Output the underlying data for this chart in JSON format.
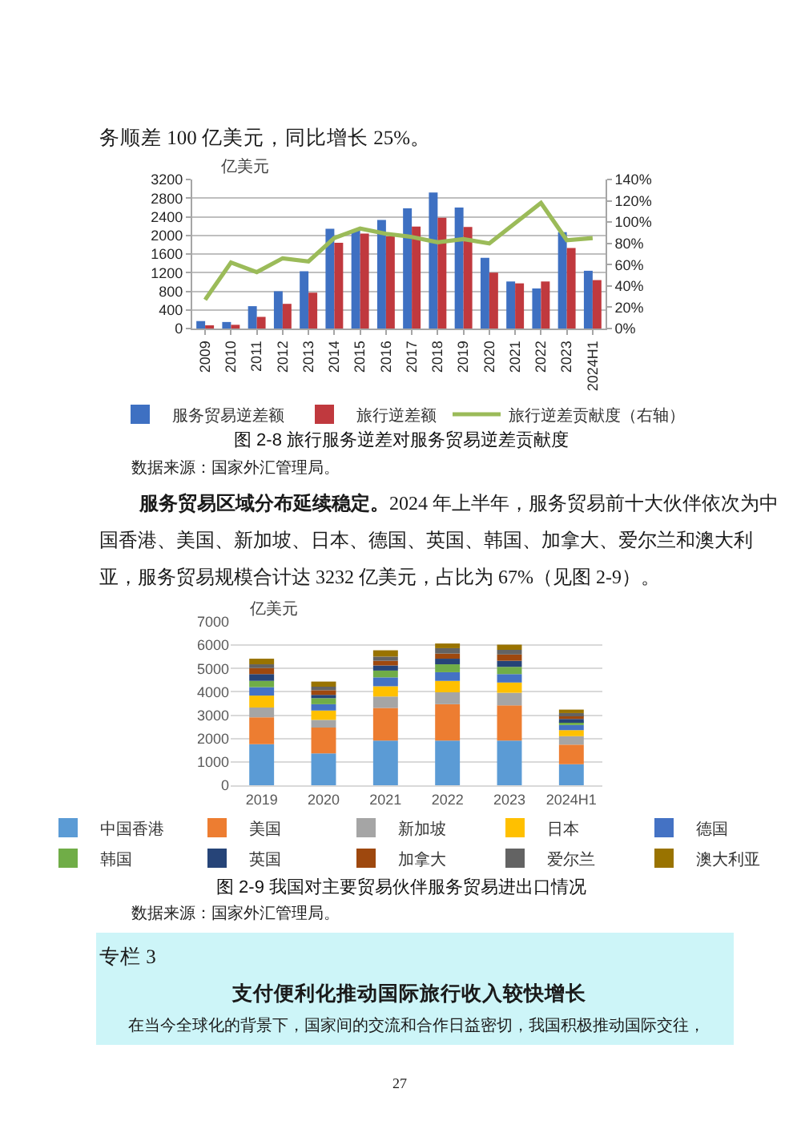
{
  "chart_data": [
    {
      "type": "bar",
      "title": "图 2-8 旅行服务逆差对服务贸易逆差贡献度",
      "ylabel": "亿美元",
      "categories": [
        "2009",
        "2010",
        "2011",
        "2012",
        "2013",
        "2014",
        "2015",
        "2016",
        "2017",
        "2018",
        "2019",
        "2020",
        "2021",
        "2022",
        "2023",
        "2024H1"
      ],
      "series": [
        {
          "name": "服务贸易逆差额",
          "color": "#3e70c2",
          "values": [
            160,
            140,
            480,
            800,
            1230,
            2140,
            2100,
            2330,
            2580,
            2920,
            2600,
            1520,
            1010,
            860,
            2070,
            1240
          ]
        },
        {
          "name": "旅行逆差额",
          "color": "#c0393e",
          "values": [
            50,
            80,
            250,
            530,
            770,
            1840,
            2040,
            1980,
            2190,
            2380,
            2180,
            1200,
            970,
            1010,
            1730,
            1040
          ]
        },
        {
          "name": "旅行逆差贡献度（右轴）",
          "type": "line",
          "axis": "y2",
          "color": "#9bbb59",
          "values": [
            27,
            62,
            53,
            66,
            63,
            85,
            94,
            89,
            86,
            81,
            84,
            80,
            99,
            118,
            83,
            85
          ]
        }
      ],
      "ylim": [
        0,
        3200
      ],
      "yticks": [
        0,
        400,
        800,
        1200,
        1600,
        2000,
        2400,
        2800,
        3200
      ],
      "y2lim": [
        0,
        140
      ],
      "y2ticks": [
        {
          "value": 0,
          "label": "0%"
        },
        {
          "value": 20,
          "label": "20%"
        },
        {
          "value": 40,
          "label": "40%"
        },
        {
          "value": 60,
          "label": "60%"
        },
        {
          "value": 80,
          "label": "80%"
        },
        {
          "value": 100,
          "label": "100%"
        },
        {
          "value": 120,
          "label": "120%"
        },
        {
          "value": 140,
          "label": "140%"
        }
      ],
      "grid": "y",
      "legend": "bottom",
      "annotations": [
        "务顺差 100 亿美元，同比增长 25%。",
        "数据来源：国家外汇管理局。"
      ]
    },
    {
      "type": "bar",
      "stacked": true,
      "title": "图 2-9 我国对主要贸易伙伴服务贸易进出口情况",
      "ylabel": "亿美元",
      "categories": [
        "2019",
        "2020",
        "2021",
        "2022",
        "2023",
        "2024H1"
      ],
      "series": [
        {
          "name": "中国香港",
          "color": "#5b9bd5",
          "values": [
            1760,
            1360,
            1910,
            1910,
            1910,
            900
          ]
        },
        {
          "name": "美国",
          "color": "#ed7d31",
          "values": [
            1150,
            1110,
            1400,
            1560,
            1510,
            840
          ]
        },
        {
          "name": "新加坡",
          "color": "#a5a5a5",
          "values": [
            420,
            330,
            490,
            510,
            540,
            360
          ]
        },
        {
          "name": "日本",
          "color": "#ffc000",
          "values": [
            510,
            400,
            440,
            490,
            440,
            260
          ]
        },
        {
          "name": "德国",
          "color": "#4472c4",
          "values": [
            360,
            270,
            380,
            370,
            360,
            220
          ]
        },
        {
          "name": "韩国",
          "color": "#70ad47",
          "values": [
            270,
            260,
            290,
            340,
            310,
            150
          ]
        },
        {
          "name": "英国",
          "color": "#264478",
          "values": [
            290,
            140,
            220,
            240,
            260,
            110
          ]
        },
        {
          "name": "加拿大",
          "color": "#9e480e",
          "values": [
            260,
            200,
            200,
            220,
            270,
            140
          ]
        },
        {
          "name": "爱尔兰",
          "color": "#636363",
          "values": [
            160,
            150,
            180,
            230,
            200,
            110
          ]
        },
        {
          "name": "澳大利亚",
          "color": "#997300",
          "values": [
            240,
            220,
            270,
            200,
            220,
            150
          ]
        }
      ],
      "ylim": [
        0,
        7000
      ],
      "yticks": [
        0,
        1000,
        2000,
        3000,
        4000,
        5000,
        6000,
        7000
      ],
      "grid": "y",
      "legend": "bottom",
      "annotations": [
        "服务贸易区域分布延续稳定。",
        "2024 年上半年，服务贸易前十大伙伴依次为中国香港、美国、新加坡、日本、德国、英国、韩国、加拿大、爱尔兰和澳大利亚，服务贸易规模合计达 3232 亿美元，占比为 67%（见图 2-9）。",
        "数据来源：国家外汇管理局。"
      ]
    },
    {
      "type": "other",
      "title": "支付便利化推动国际旅行收入较快增长",
      "annotations": [
        "专栏 3",
        "在当今全球化的背景下，国家间的交流和合作日益密切，我国积极推动国际交往，",
        "27"
      ]
    }
  ]
}
